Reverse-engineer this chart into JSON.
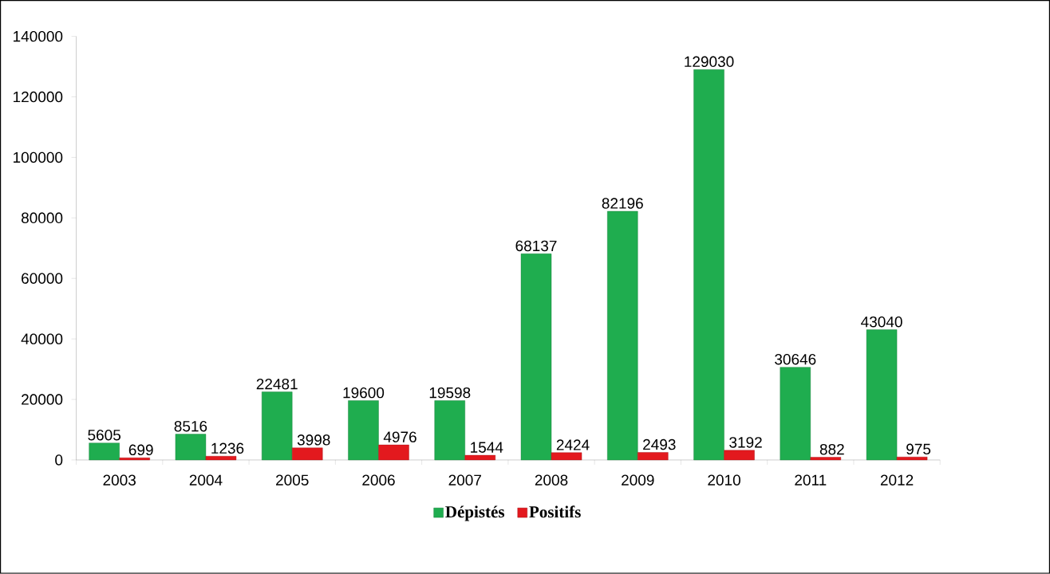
{
  "chart_data": {
    "type": "bar",
    "categories": [
      "2003",
      "2004",
      "2005",
      "2006",
      "2007",
      "2008",
      "2009",
      "2010",
      "2011",
      "2012"
    ],
    "series": [
      {
        "name": "Dépistés",
        "color": "#1fad4f",
        "values": [
          5605,
          8516,
          22481,
          19600,
          19598,
          68137,
          82196,
          129030,
          30646,
          43040
        ]
      },
      {
        "name": "Positifs",
        "color": "#e3191e",
        "values": [
          699,
          1236,
          3998,
          4976,
          1544,
          2424,
          2493,
          3192,
          882,
          975
        ]
      }
    ],
    "ylim": [
      0,
      140000
    ],
    "yticks": [
      0,
      20000,
      40000,
      60000,
      80000,
      100000,
      120000,
      140000
    ],
    "data_labels": true,
    "legend": "bottom",
    "grid": false
  }
}
